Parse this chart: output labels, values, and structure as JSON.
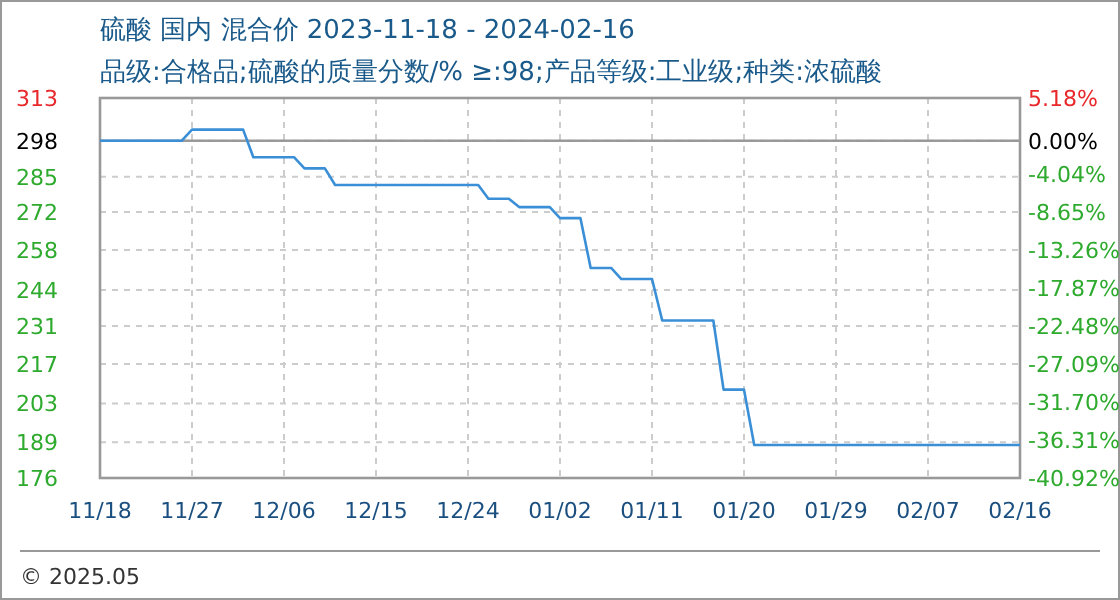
{
  "chart_data": {
    "type": "line",
    "title": "硫酸 国内 混合价 2023-11-18 - 2024-02-16",
    "subtitle": "品级:合格品;硫酸的质量分数/% ≥:98;产品等级:工业级;种类:浓硫酸",
    "x": [
      "2023-11-18",
      "2023-11-26",
      "2023-11-27",
      "2023-12-02",
      "2023-12-03",
      "2023-12-07",
      "2023-12-08",
      "2023-12-10",
      "2023-12-11",
      "2023-12-25",
      "2023-12-26",
      "2023-12-28",
      "2023-12-29",
      "2024-01-01",
      "2024-01-02",
      "2024-01-04",
      "2024-01-05",
      "2024-01-07",
      "2024-01-08",
      "2024-01-11",
      "2024-01-12",
      "2024-01-17",
      "2024-01-18",
      "2024-01-20",
      "2024-01-21",
      "2024-02-16"
    ],
    "series": [
      {
        "color": "#3a8fd6",
        "values": [
          298,
          298,
          302,
          302,
          292,
          292,
          288,
          288,
          282,
          282,
          277,
          277,
          274,
          274,
          270,
          270,
          252,
          252,
          248,
          248,
          233,
          233,
          208,
          208,
          188,
          188
        ]
      }
    ],
    "xlim": [
      "2023-11-18",
      "2024-02-16"
    ],
    "xticks": [
      {
        "value": "2023-11-18",
        "label": "11/18"
      },
      {
        "value": "2023-11-27",
        "label": "11/27"
      },
      {
        "value": "2023-12-06",
        "label": "12/06"
      },
      {
        "value": "2023-12-15",
        "label": "12/15"
      },
      {
        "value": "2023-12-24",
        "label": "12/24"
      },
      {
        "value": "2024-01-02",
        "label": "01/02"
      },
      {
        "value": "2024-01-11",
        "label": "01/11"
      },
      {
        "value": "2024-01-20",
        "label": "01/20"
      },
      {
        "value": "2024-01-29",
        "label": "01/29"
      },
      {
        "value": "2024-02-07",
        "label": "02/07"
      },
      {
        "value": "2024-02-16",
        "label": "02/16"
      }
    ],
    "ylim": [
      176.06,
      313.44
    ],
    "yticks": [
      {
        "value": 313.44,
        "label": "313"
      },
      298,
      285,
      {
        "value": 272.22,
        "label": "272"
      },
      {
        "value": 258.48,
        "label": "258"
      },
      244,
      {
        "value": 231.01,
        "label": "231"
      },
      {
        "value": 217.27,
        "label": "217"
      },
      203,
      189,
      {
        "value": 176.06,
        "label": "176"
      }
    ],
    "y2lim": [
      -40.92,
      5.18
    ],
    "y2ticks": [
      {
        "value": 5.18,
        "label": "5.18%"
      },
      {
        "value": 0,
        "label": "0.00%"
      },
      {
        "value": -4.04,
        "label": "-4.04%"
      },
      {
        "value": -8.65,
        "label": "-8.65%"
      },
      {
        "value": -13.26,
        "label": "-13.26%"
      },
      {
        "value": -17.87,
        "label": "-17.87%"
      },
      {
        "value": -22.48,
        "label": "-22.48%"
      },
      {
        "value": -27.09,
        "label": "-27.09%"
      },
      {
        "value": -31.7,
        "label": "-31.70%"
      },
      {
        "value": -36.31,
        "label": "-36.31%"
      },
      {
        "value": -40.92,
        "label": "-40.92%"
      }
    ],
    "ref_lines": [
      {
        "axis": "y",
        "value": 298,
        "color": "#999999"
      }
    ],
    "grid": true,
    "line_style": "solid",
    "annotations": [
      "© 2025.05"
    ]
  }
}
